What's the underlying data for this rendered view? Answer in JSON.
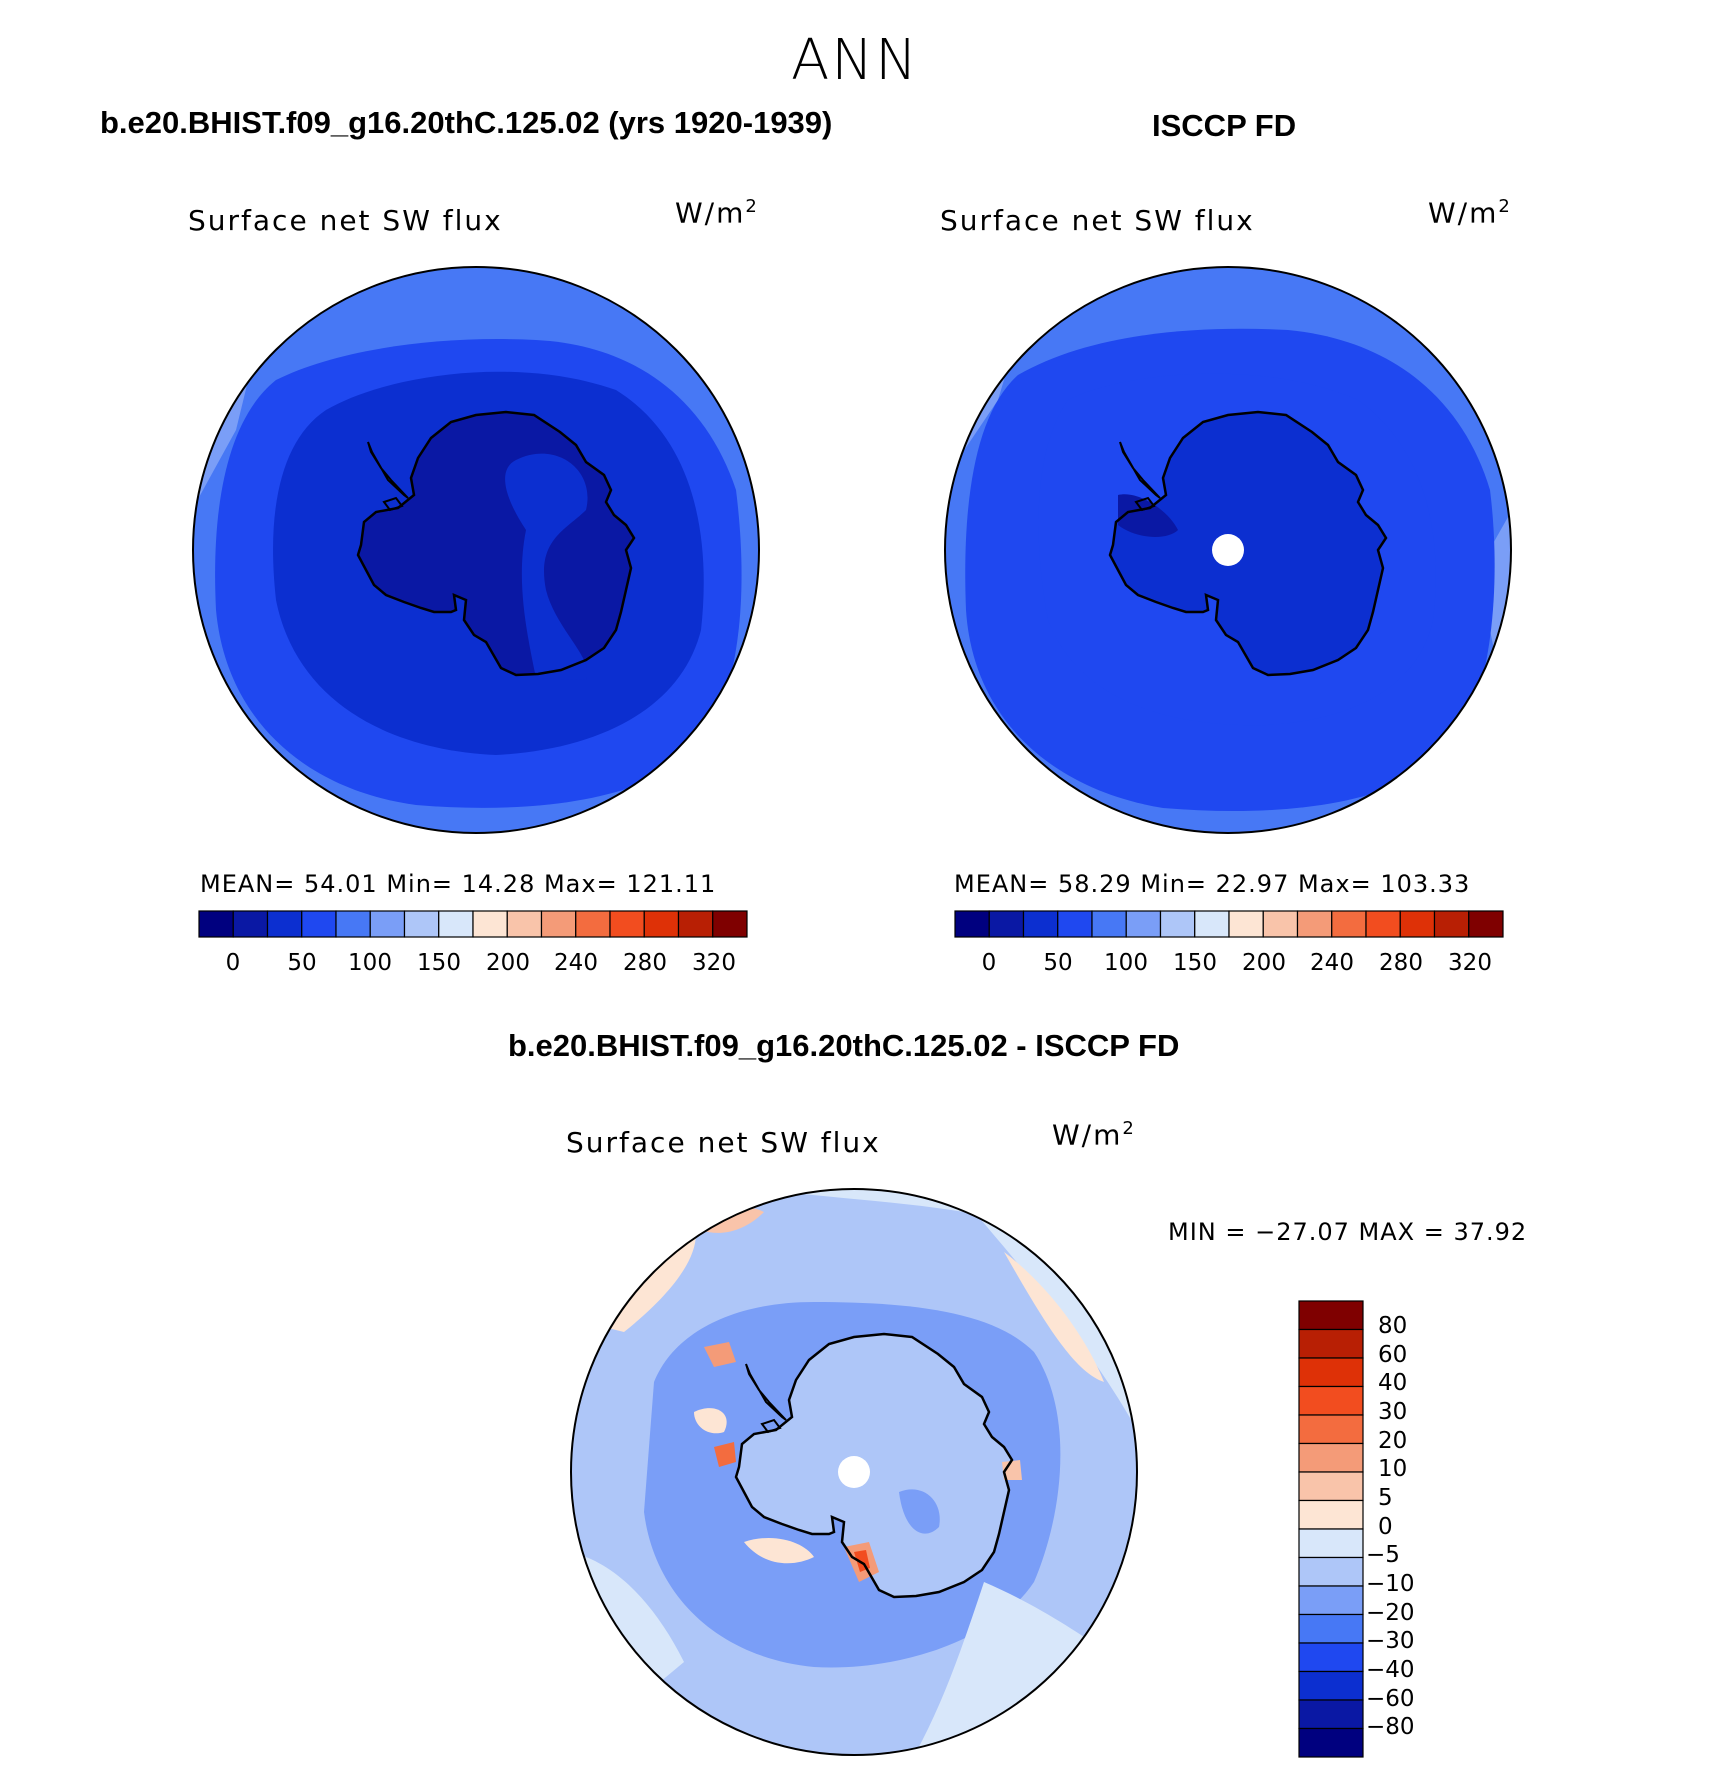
{
  "figure": {
    "season": "ANN",
    "panels": [
      {
        "title": "b.e20.BHIST.f09_g16.20thC.125.02 (yrs 1920-1939)",
        "variable": "Surface net SW flux",
        "units_base": "W/m",
        "units_exp": "2",
        "stats": "MEAN=   54.01   Min=    14.28   Max=  121.11"
      },
      {
        "title": "ISCCP FD",
        "variable": "Surface net SW flux",
        "units_base": "W/m",
        "units_exp": "2",
        "stats": "MEAN=   58.29   Min=    22.97   Max=  103.33"
      },
      {
        "title": "b.e20.BHIST.f09_g16.20thC.125.02 - ISCCP FD",
        "variable": "Surface net SW flux",
        "units_base": "W/m",
        "units_exp": "2",
        "stats": "MIN = −27.07 MAX =   37.92"
      }
    ],
    "colorbar_labels": [
      "0",
      "50",
      "100",
      "150",
      "200",
      "240",
      "280",
      "320"
    ],
    "colorbar_colors": [
      "#00007f",
      "#0a18a4",
      "#0c2fd0",
      "#1f48f0",
      "#4778f5",
      "#7a9ef7",
      "#aec6f8",
      "#d8e7fa",
      "#fde5d4",
      "#f9c4aa",
      "#f49b78",
      "#f36c3f",
      "#f24d1f",
      "#de3107",
      "#b81f04",
      "#7f0000"
    ],
    "diff_colorbar": {
      "labels": [
        "80",
        "60",
        "40",
        "30",
        "20",
        "10",
        "5",
        "0",
        "−5",
        "−10",
        "−20",
        "−30",
        "−40",
        "−60",
        "−80"
      ],
      "colors": [
        "#7f0000",
        "#b81f04",
        "#de3107",
        "#f24d1f",
        "#f36c3f",
        "#f49b78",
        "#f9c4aa",
        "#fde5d4",
        "#d8e7fa",
        "#aec6f8",
        "#7a9ef7",
        "#4778f5",
        "#1f48f0",
        "#0c2fd0",
        "#0a18a4",
        "#00007f"
      ]
    }
  },
  "chart_data": [
    {
      "type": "heatmap",
      "title": "b.e20.BHIST.f09_g16.20thC.125.02 (yrs 1920-1939)",
      "variable": "Surface net SW flux",
      "units": "W/m2",
      "projection": "south polar stereographic",
      "mean": 54.01,
      "min": 14.28,
      "max": 121.11,
      "levels": [
        0,
        25,
        50,
        75,
        100,
        125,
        150,
        175,
        200,
        220,
        240,
        260,
        280,
        300,
        320
      ]
    },
    {
      "type": "heatmap",
      "title": "ISCCP FD",
      "variable": "Surface net SW flux",
      "units": "W/m2",
      "projection": "south polar stereographic",
      "mean": 58.29,
      "min": 22.97,
      "max": 103.33,
      "levels": [
        0,
        25,
        50,
        75,
        100,
        125,
        150,
        175,
        200,
        220,
        240,
        260,
        280,
        300,
        320
      ]
    },
    {
      "type": "heatmap",
      "title": "b.e20.BHIST.f09_g16.20thC.125.02 - ISCCP FD",
      "variable": "Surface net SW flux",
      "units": "W/m2",
      "projection": "south polar stereographic",
      "min": -27.07,
      "max": 37.92,
      "levels": [
        -80,
        -60,
        -40,
        -30,
        -20,
        -10,
        -5,
        0,
        5,
        10,
        20,
        30,
        40,
        60,
        80
      ]
    }
  ]
}
